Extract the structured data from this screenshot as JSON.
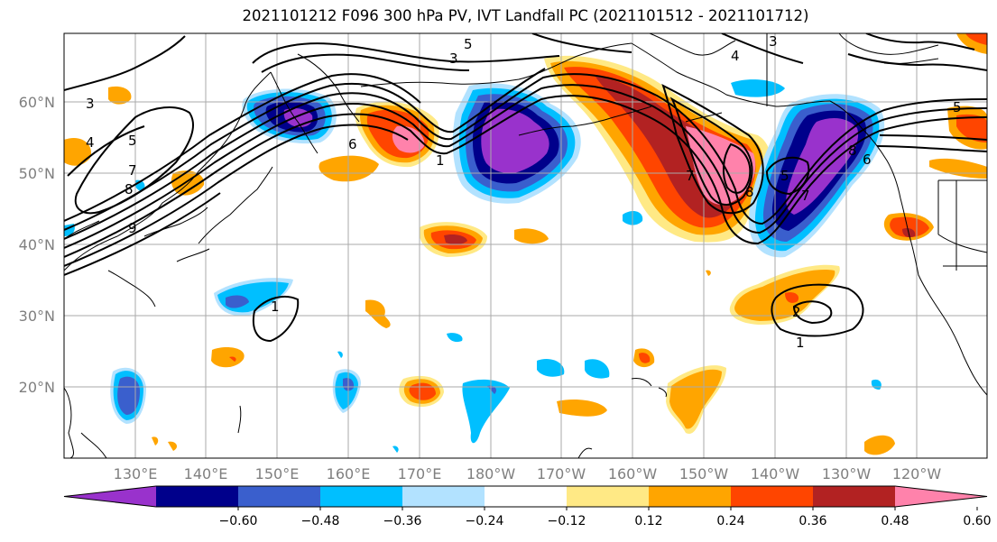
{
  "title": "2021101212 F096 300 hPa PV, IVT Landfall PC (2021101512 - 2021101712)",
  "lat_labels": [
    "60°N",
    "50°N",
    "40°N",
    "30°N",
    "20°N"
  ],
  "lon_labels": [
    "130°E",
    "140°E",
    "150°E",
    "160°E",
    "170°E",
    "180°W",
    "170°W",
    "160°W",
    "150°W",
    "140°W",
    "130°W",
    "120°W"
  ],
  "colorbar": {
    "colors": [
      "#9932cc",
      "#00008b",
      "#3a5fcd",
      "#00bfff",
      "#b2e2ff",
      "#ffffff",
      "#ffe985",
      "#ffa500",
      "#ff4500",
      "#b22222",
      "#ff82ab"
    ],
    "tick_labels": [
      "−0.60",
      "−0.48",
      "−0.36",
      "−0.24",
      "−0.12",
      "0.12",
      "0.24",
      "0.36",
      "0.48",
      "0.60"
    ]
  },
  "contour_labels": [
    "5",
    "3",
    "3",
    "4",
    "5",
    "7",
    "8",
    "9",
    "6",
    "1",
    "3",
    "4",
    "7",
    "8",
    "5",
    "7",
    "8",
    "6",
    "5",
    "1",
    "2",
    "1"
  ],
  "colors": {
    "contour": "#000000",
    "grid": "#aaaaaa",
    "coast": "#000000"
  }
}
